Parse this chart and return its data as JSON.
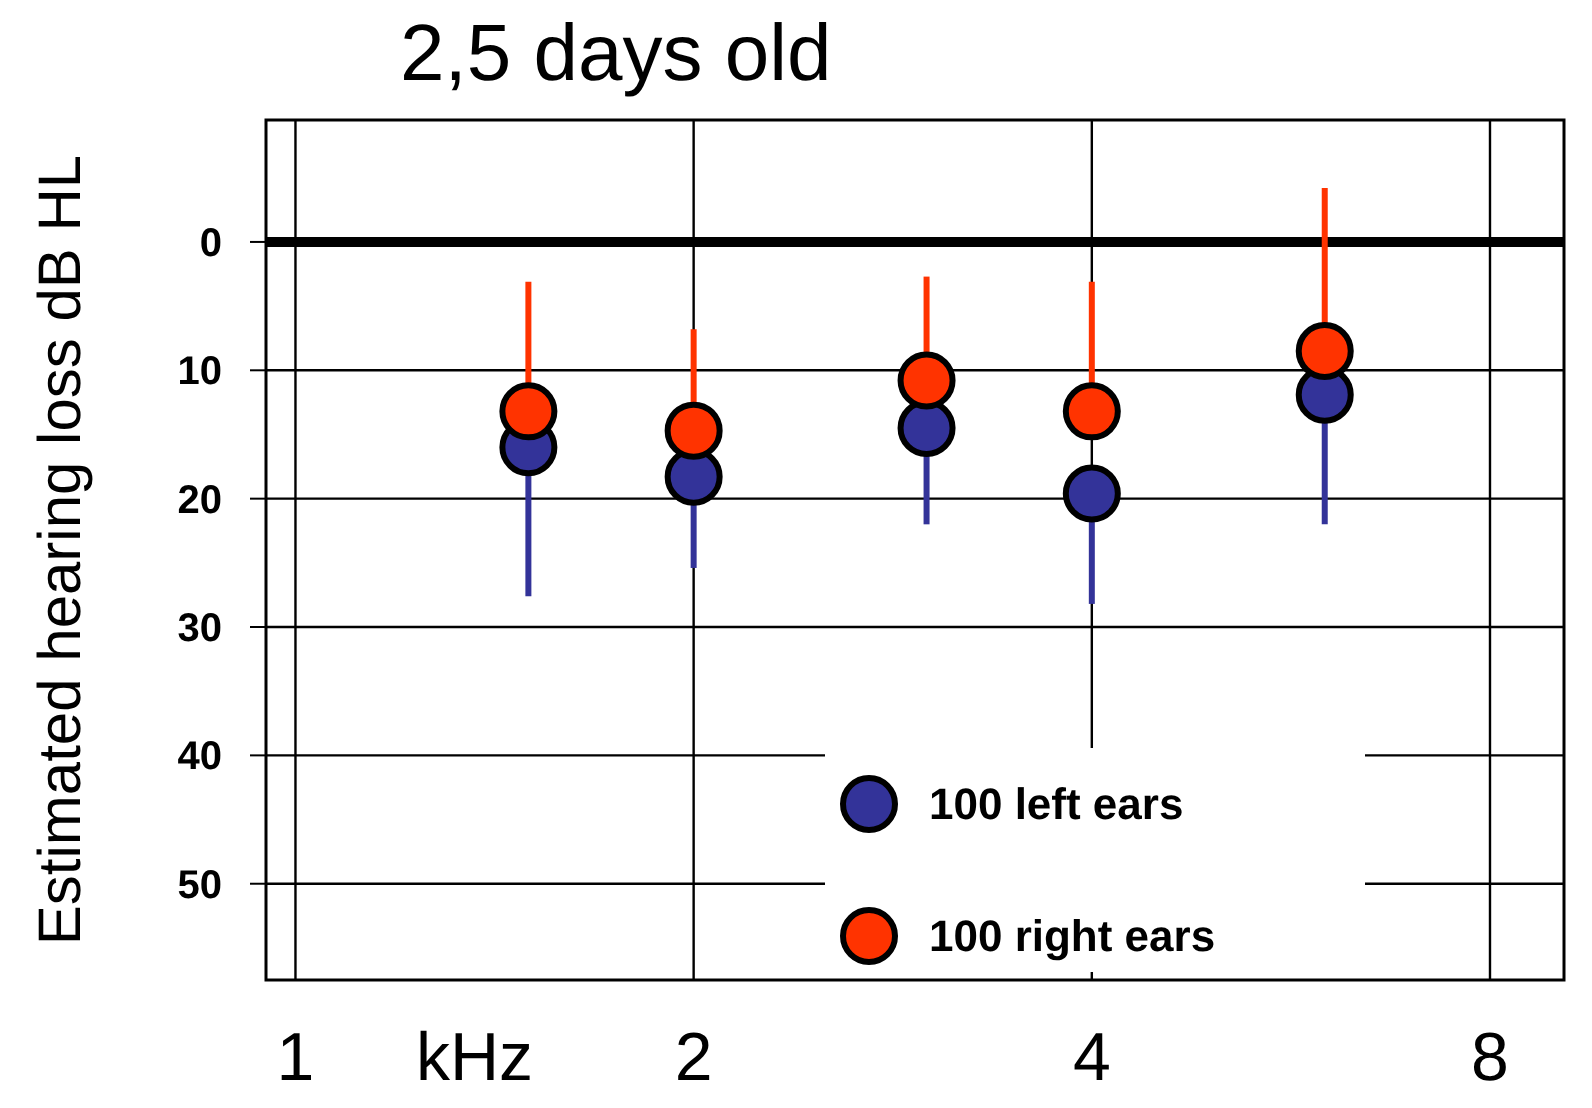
{
  "chart_data": {
    "type": "scatter",
    "title": "2,5 days old",
    "xlabel": "kHz",
    "ylabel": "Estimated hearing loss dB HL",
    "log": "x",
    "xlim": [
      0.95,
      9.1
    ],
    "xticks": [
      1,
      2,
      4,
      8
    ],
    "ylim": [
      57.5,
      -9.5
    ],
    "yticks": [
      0,
      10,
      20,
      30,
      40,
      50
    ],
    "grid": true,
    "legend": "bottom",
    "marker": "circle",
    "ref_lines": [
      {
        "axis": "y",
        "value": 0,
        "color": "#000000"
      }
    ],
    "series": [
      {
        "name": "100 left ears",
        "color": "#333399",
        "x": [
          1.5,
          2,
          3,
          4,
          6
        ],
        "values": [
          16.0,
          18.3,
          14.5,
          19.6,
          11.9
        ],
        "errors": [
          [
            16.0,
            27.6
          ],
          [
            18.3,
            25.4
          ],
          [
            14.5,
            22.0
          ],
          [
            19.6,
            28.2
          ],
          [
            11.9,
            22.0
          ]
        ]
      },
      {
        "name": "100 right ears",
        "color": "#ff3300",
        "x": [
          1.5,
          2,
          3,
          4,
          6
        ],
        "values": [
          13.2,
          14.7,
          10.8,
          13.2,
          8.5
        ],
        "errors": [
          [
            3.1,
            13.2
          ],
          [
            6.8,
            14.7
          ],
          [
            2.7,
            10.8
          ],
          [
            3.1,
            13.2
          ],
          [
            -4.2,
            8.5
          ]
        ]
      }
    ]
  }
}
